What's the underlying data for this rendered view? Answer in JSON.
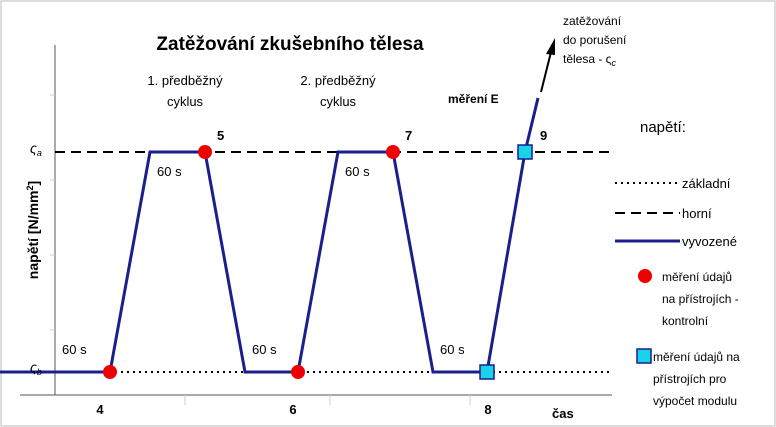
{
  "title": "Zatěžování zkušebního tělesa",
  "cycle1": [
    "1. předběžný",
    "cyklus"
  ],
  "cycle2": [
    "2. předběžný",
    "cyklus"
  ],
  "measure_e": "měření E",
  "failure": [
    "zatěžování",
    "do porušení",
    "tělesa - ς"
  ],
  "failure_sub": "c",
  "sigma_a": {
    "symbol": "ς",
    "sub": "a"
  },
  "sigma_b": {
    "symbol": "ς",
    "sub": "b"
  },
  "y_label": {
    "text": "napětí [N/mm",
    "sup": "2",
    "end": "]"
  },
  "durations": [
    "60 s",
    "60 s",
    "60 s",
    "60 s",
    "60 s"
  ],
  "points": [
    "5",
    "7",
    "9"
  ],
  "x_labels": [
    "4",
    "6",
    "8"
  ],
  "x_axis": "čas",
  "legend": {
    "title": "napětí:",
    "basic": "základní",
    "upper": "horní",
    "applied": "vyvozené",
    "control": [
      "měření údajů",
      "na přístrojích -",
      "kontrolní"
    ],
    "modulus": [
      "měření údajů na",
      "přístrojích pro",
      "výpočet modulu"
    ]
  }
}
